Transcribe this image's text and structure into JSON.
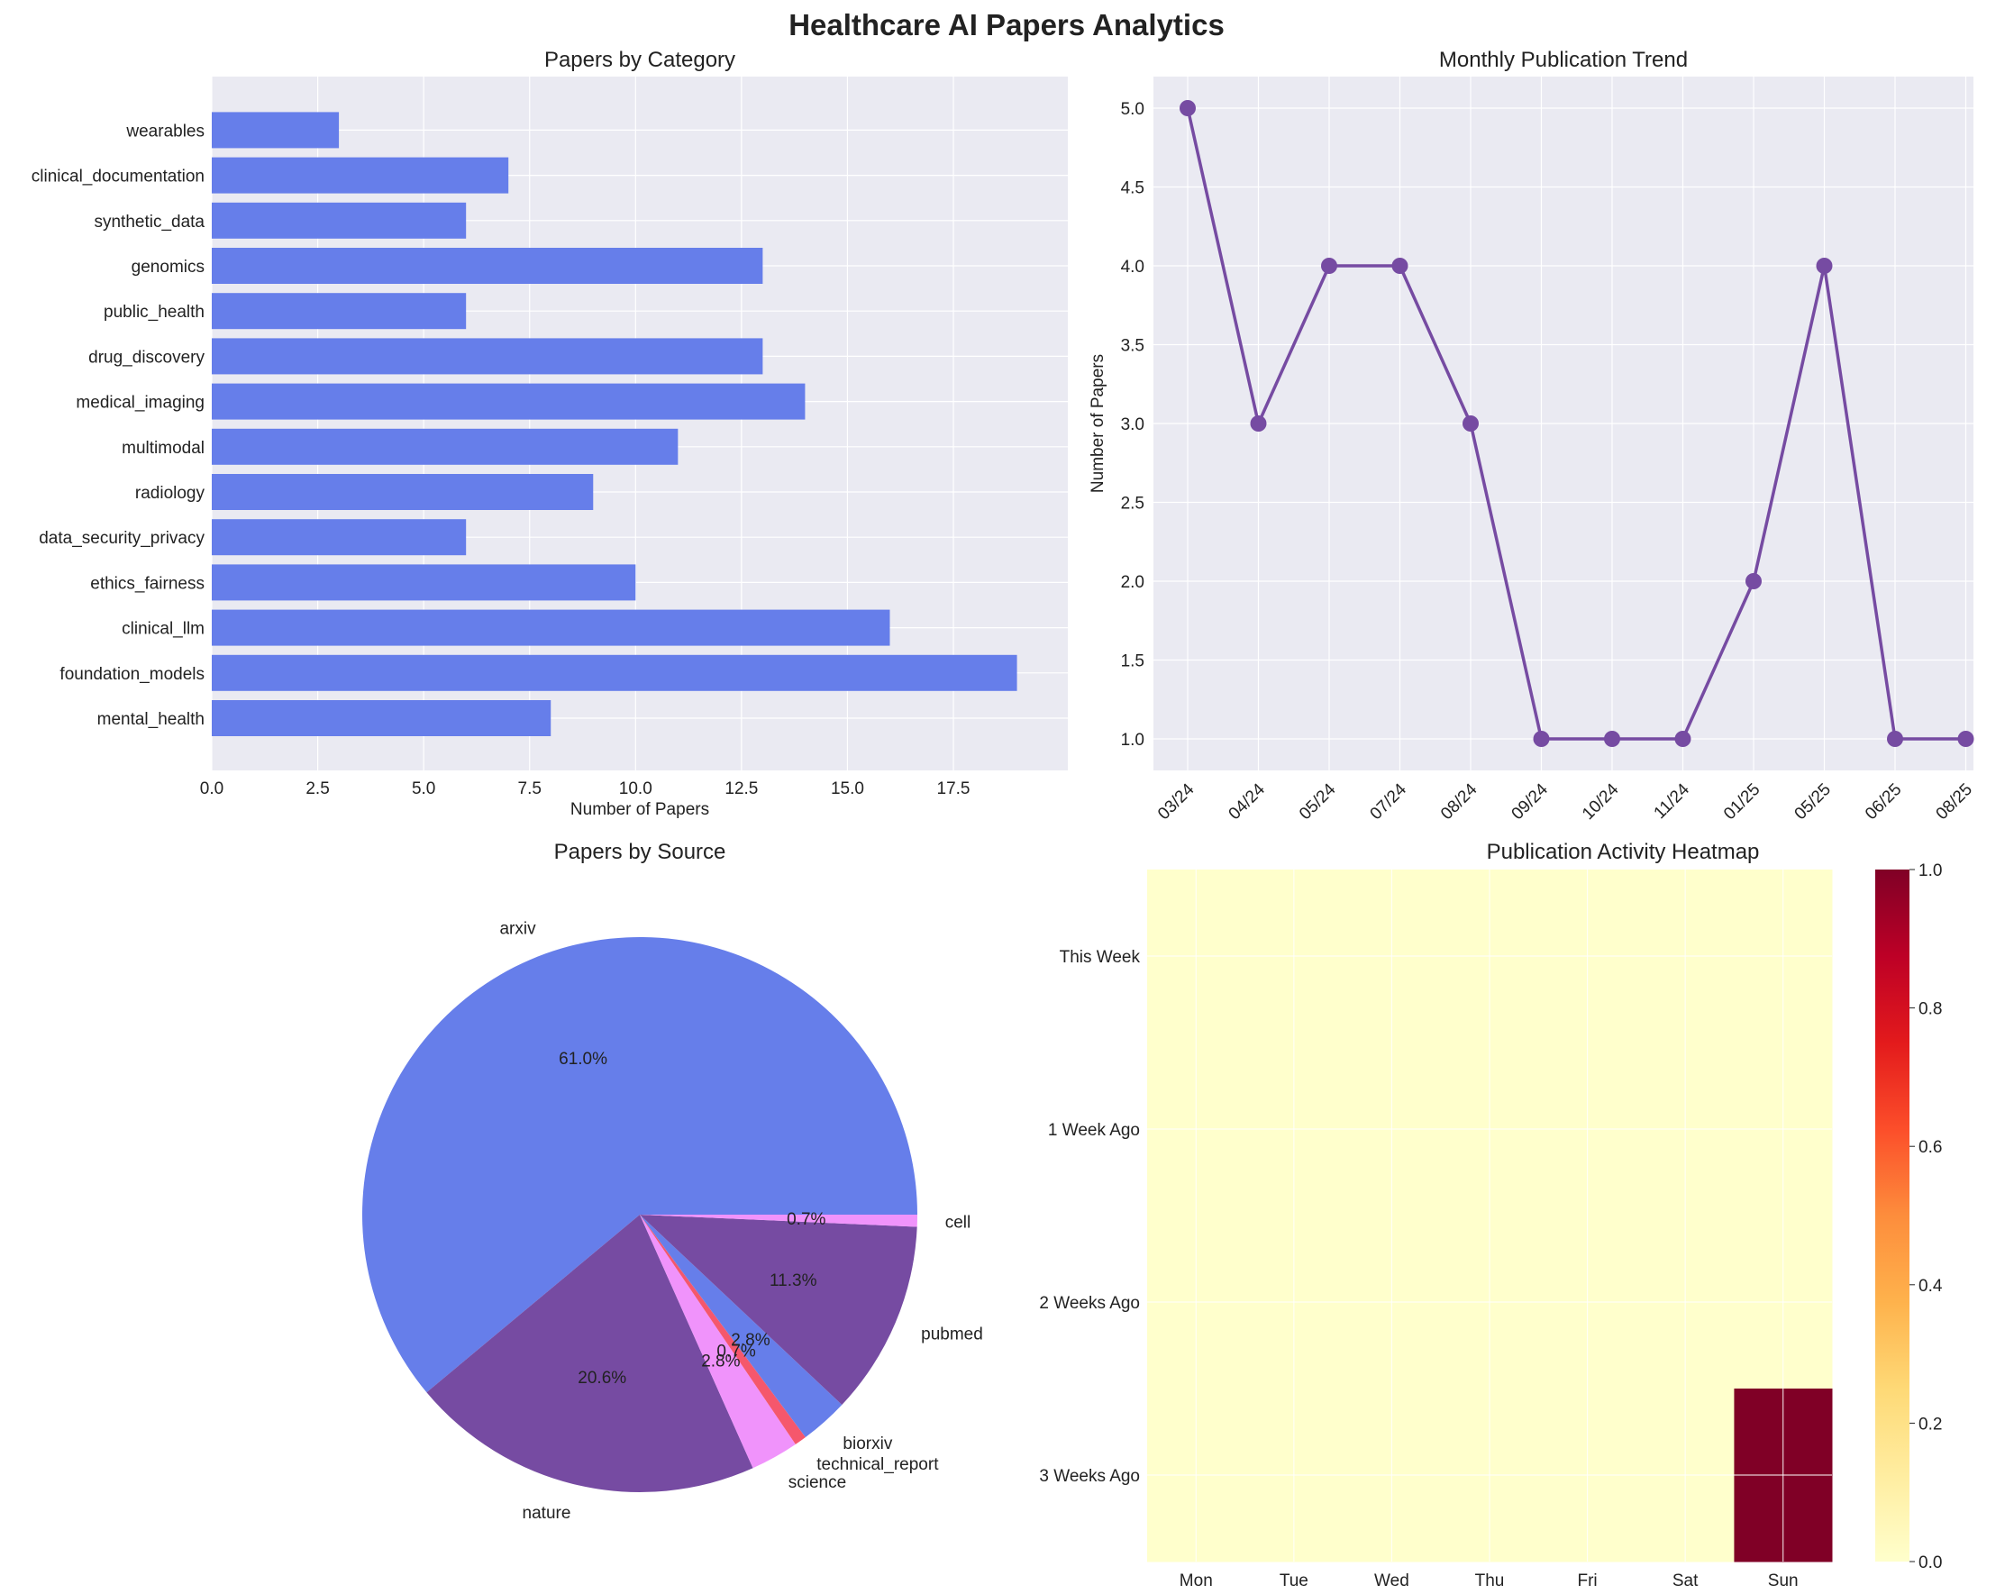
{
  "figure": {
    "suptitle": "Healthcare AI Papers Analytics"
  },
  "colors": {
    "panel_bg": "#EAEAF2",
    "grid": "#ffffff",
    "bar": "#667EEA",
    "line": "#764BA2",
    "pie": [
      "#667EEA",
      "#764BA2",
      "#F093FB",
      "#F5576C",
      "#667EEA",
      "#764BA2",
      "#F093FB"
    ],
    "heat_low": "#FFFFCC",
    "heat_high": "#800026"
  },
  "chart_data": [
    {
      "type": "bar",
      "orientation": "horizontal",
      "title": "Papers by Category",
      "xlabel": "Number of Papers",
      "ylabel": "",
      "xlim": [
        0,
        20.2
      ],
      "xticks": [
        0.0,
        2.5,
        5.0,
        7.5,
        10.0,
        12.5,
        15.0,
        17.5
      ],
      "xtick_labels": [
        "0.0",
        "2.5",
        "5.0",
        "7.5",
        "10.0",
        "12.5",
        "15.0",
        "17.5"
      ],
      "grid": true,
      "categories": [
        "mental_health",
        "foundation_models",
        "clinical_llm",
        "ethics_fairness",
        "data_security_privacy",
        "radiology",
        "multimodal",
        "medical_imaging",
        "drug_discovery",
        "public_health",
        "genomics",
        "synthetic_data",
        "clinical_documentation",
        "wearables"
      ],
      "values": [
        8,
        19,
        16,
        10,
        6,
        9,
        11,
        14,
        13,
        6,
        13,
        6,
        7,
        3
      ]
    },
    {
      "type": "line",
      "title": "Monthly Publication Trend",
      "xlabel": "",
      "ylabel": "Number of Papers",
      "ylim": [
        0.8,
        5.2
      ],
      "yticks": [
        1.0,
        1.5,
        2.0,
        2.5,
        3.0,
        3.5,
        4.0,
        4.5,
        5.0
      ],
      "ytick_labels": [
        "1.0",
        "1.5",
        "2.0",
        "2.5",
        "3.0",
        "3.5",
        "4.0",
        "4.5",
        "5.0"
      ],
      "grid": true,
      "x": [
        "03/24",
        "04/24",
        "05/24",
        "07/24",
        "08/24",
        "09/24",
        "10/24",
        "11/24",
        "01/25",
        "05/25",
        "06/25",
        "08/25"
      ],
      "values": [
        5,
        3,
        4,
        4,
        3,
        1,
        1,
        1,
        2,
        4,
        1,
        1
      ]
    },
    {
      "type": "pie",
      "title": "Papers by Source",
      "labels": [
        "arxiv",
        "nature",
        "science",
        "technical_report",
        "biorxiv",
        "pubmed",
        "cell"
      ],
      "values": [
        61.0,
        20.6,
        2.8,
        0.7,
        2.8,
        11.3,
        0.7
      ],
      "pct_labels": [
        "61.0%",
        "20.6%",
        "2.8%",
        "0.7%",
        "2.8%",
        "11.3%",
        "0.7%"
      ]
    },
    {
      "type": "heatmap",
      "title": "Publication Activity Heatmap",
      "x": [
        "Mon",
        "Tue",
        "Wed",
        "Thu",
        "Fri",
        "Sat",
        "Sun"
      ],
      "y": [
        "This Week",
        "1 Week Ago",
        "2 Weeks Ago",
        "3 Weeks Ago"
      ],
      "values": [
        [
          0,
          0,
          0,
          0,
          0,
          0,
          0
        ],
        [
          0,
          0,
          0,
          0,
          0,
          0,
          0
        ],
        [
          0,
          0,
          0,
          0,
          0,
          0,
          0
        ],
        [
          0,
          0,
          0,
          0,
          0,
          0,
          1
        ]
      ],
      "colorbar": {
        "range": [
          0,
          1
        ],
        "ticks": [
          0.0,
          0.2,
          0.4,
          0.6,
          0.8,
          1.0
        ],
        "tick_labels": [
          "0.0",
          "0.2",
          "0.4",
          "0.6",
          "0.8",
          "1.0"
        ],
        "colormap": "YlOrRd"
      }
    }
  ]
}
